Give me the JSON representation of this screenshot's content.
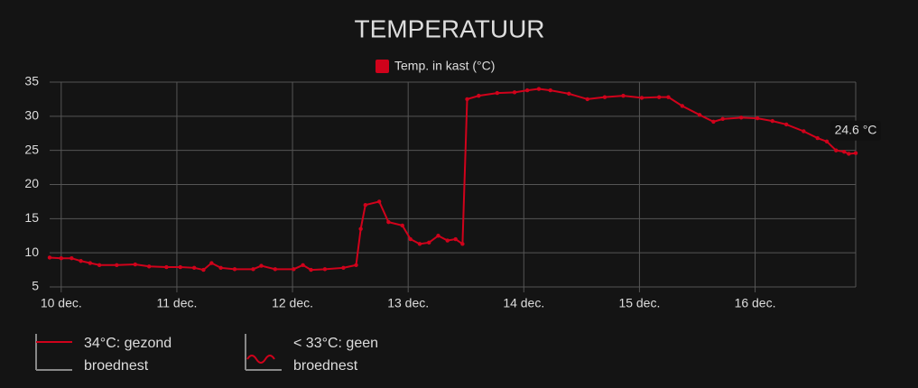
{
  "chart_data": {
    "type": "line",
    "title": "TEMPERATUUR",
    "x": [
      9.9,
      10.0,
      10.09,
      10.17,
      10.25,
      10.33,
      10.48,
      10.64,
      10.76,
      10.91,
      11.03,
      11.15,
      11.23,
      11.3,
      11.38,
      11.5,
      11.66,
      11.73,
      11.85,
      12.01,
      12.09,
      12.16,
      12.28,
      12.44,
      12.55,
      12.59,
      12.63,
      12.75,
      12.83,
      12.95,
      13.02,
      13.1,
      13.18,
      13.26,
      13.34,
      13.41,
      13.47,
      13.51,
      13.61,
      13.77,
      13.92,
      14.03,
      14.13,
      14.23,
      14.39,
      14.55,
      14.7,
      14.86,
      15.02,
      15.17,
      15.25,
      15.37,
      15.52,
      15.64,
      15.72,
      15.88,
      16.02,
      16.15,
      16.27,
      16.42,
      16.54,
      16.62,
      16.7,
      16.77,
      16.81,
      16.87
    ],
    "series": [
      {
        "name": "Temp. in kast (°C)",
        "color": "#d0021b",
        "values": [
          9.3,
          9.2,
          9.2,
          8.8,
          8.5,
          8.2,
          8.2,
          8.3,
          8.0,
          7.9,
          7.9,
          7.8,
          7.5,
          8.5,
          7.8,
          7.6,
          7.6,
          8.1,
          7.6,
          7.6,
          8.2,
          7.5,
          7.6,
          7.8,
          8.2,
          13.5,
          17.0,
          17.5,
          14.5,
          14.0,
          12.0,
          11.3,
          11.5,
          12.5,
          11.8,
          12.0,
          11.3,
          32.5,
          33.0,
          33.4,
          33.5,
          33.8,
          34.0,
          33.8,
          33.3,
          32.5,
          32.8,
          33.0,
          32.7,
          32.8,
          32.8,
          31.5,
          30.2,
          29.2,
          29.6,
          29.8,
          29.7,
          29.3,
          28.8,
          27.8,
          26.8,
          26.3,
          25.0,
          24.8,
          24.5,
          24.6
        ]
      }
    ],
    "xlim": [
      9.9,
      16.87
    ],
    "xticks": [
      {
        "value": 10,
        "label": "10 dec."
      },
      {
        "value": 11,
        "label": "11 dec."
      },
      {
        "value": 12,
        "label": "12 dec."
      },
      {
        "value": 13,
        "label": "13 dec."
      },
      {
        "value": 14,
        "label": "14 dec."
      },
      {
        "value": 15,
        "label": "15 dec."
      },
      {
        "value": 16,
        "label": "16 dec."
      }
    ],
    "ylim": [
      5,
      35
    ],
    "yticks": [
      5,
      10,
      15,
      20,
      25,
      30,
      35
    ],
    "grid": true,
    "legend": "top",
    "tooltip": {
      "x": 16.87,
      "value": 24.6,
      "label": "24.6 °C"
    },
    "notes": [
      {
        "text": "34°C: gezond broednest"
      },
      {
        "text": "< 33°C: geen broednest"
      }
    ]
  }
}
